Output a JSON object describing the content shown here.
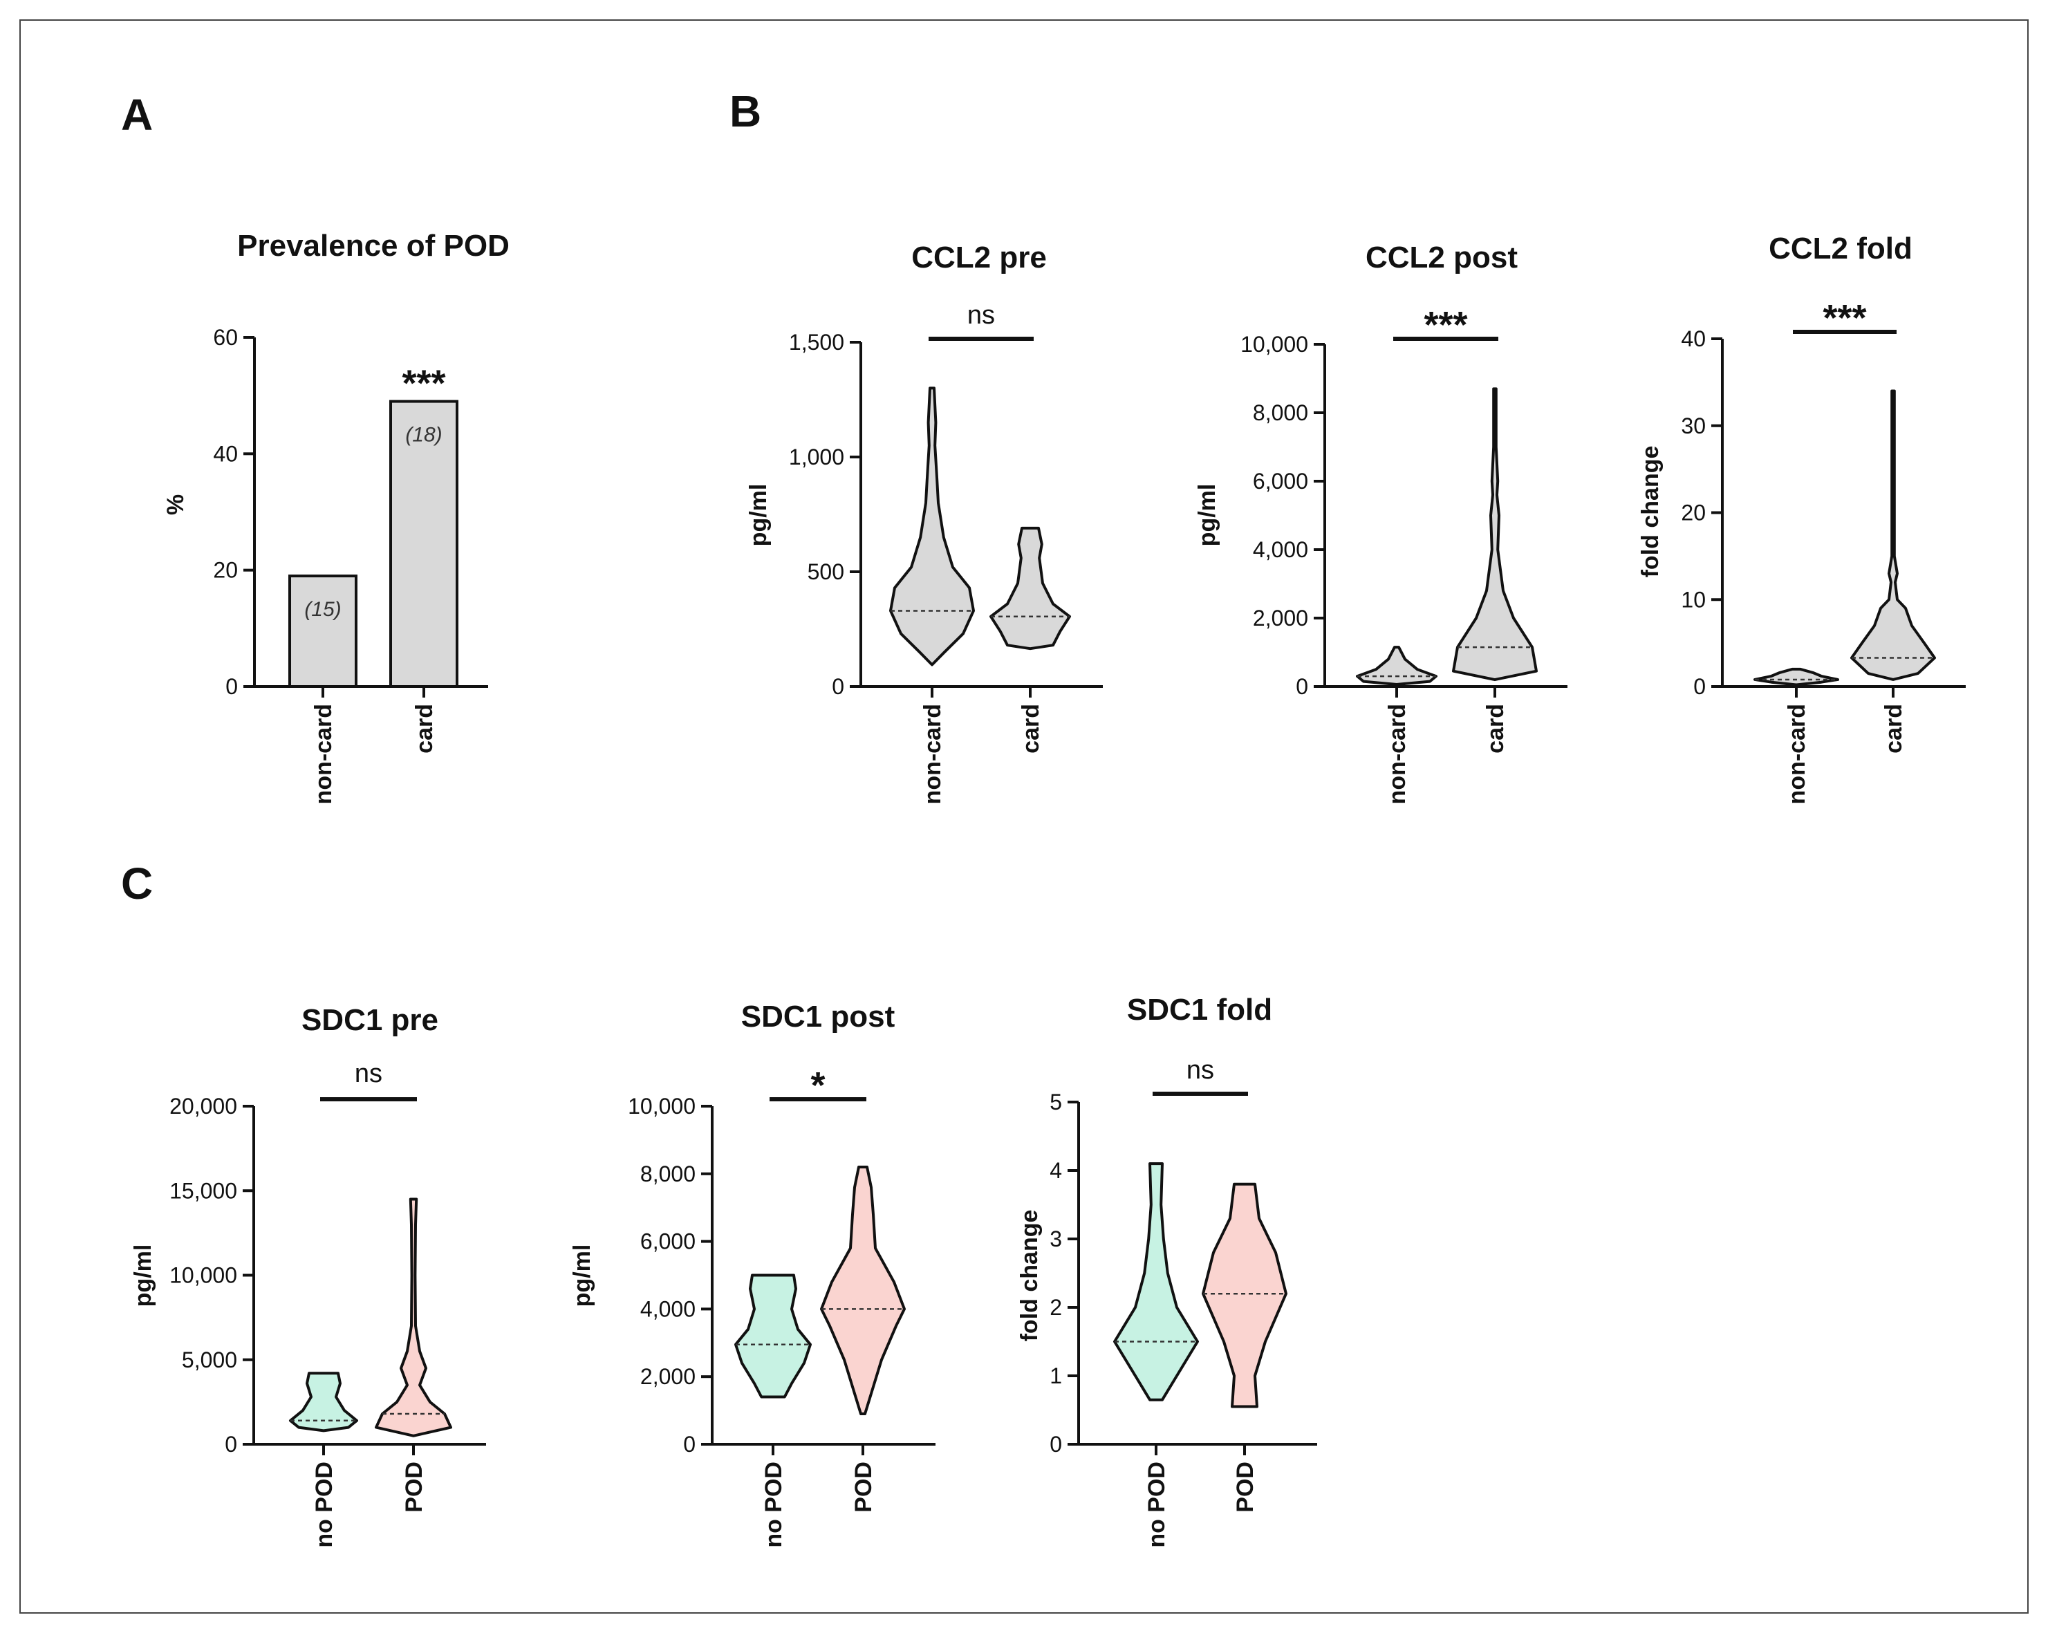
{
  "panels": {
    "a": "A",
    "b": "B",
    "c": "C"
  },
  "colors": {
    "gray": "#d9d9d9",
    "teal": "#c7f2e3",
    "pink": "#fad4d0",
    "stroke": "#111111"
  },
  "chart_data": [
    {
      "id": "pod_prevalence",
      "type": "bar",
      "title": "Prevalence of POD",
      "categories": [
        "non-card",
        "card"
      ],
      "values": [
        19,
        49
      ],
      "n_labels": [
        "(15)",
        "(18)"
      ],
      "ylabel": "%",
      "ylim": [
        0,
        60
      ],
      "yticks": [
        0,
        20,
        40,
        60
      ],
      "ytick_labels": [
        "0",
        "20",
        "40",
        "60"
      ],
      "annotation": "***"
    },
    {
      "id": "ccl2_pre",
      "type": "violin",
      "title": "CCL2 pre",
      "categories": [
        "non-card",
        "card"
      ],
      "ylabel": "pg/ml",
      "ylim": [
        0,
        1500
      ],
      "yticks": [
        0,
        500,
        1000,
        1500
      ],
      "ytick_labels": [
        "0",
        "500",
        "1,000",
        "1,500"
      ],
      "significance": "ns",
      "series": [
        {
          "name": "non-card",
          "min": 95,
          "max": 1300,
          "median": 330,
          "profile": [
            [
              95,
              0.0
            ],
            [
              150,
              0.3
            ],
            [
              230,
              0.75
            ],
            [
              330,
              1.0
            ],
            [
              430,
              0.9
            ],
            [
              520,
              0.5
            ],
            [
              650,
              0.28
            ],
            [
              800,
              0.15
            ],
            [
              900,
              0.12
            ],
            [
              1050,
              0.07
            ],
            [
              1150,
              0.09
            ],
            [
              1300,
              0.05
            ]
          ]
        },
        {
          "name": "card",
          "min": 165,
          "max": 690,
          "median": 305,
          "profile": [
            [
              165,
              0.0
            ],
            [
              180,
              0.55
            ],
            [
              240,
              0.72
            ],
            [
              305,
              0.95
            ],
            [
              360,
              0.55
            ],
            [
              450,
              0.3
            ],
            [
              560,
              0.22
            ],
            [
              620,
              0.28
            ],
            [
              690,
              0.2
            ]
          ]
        }
      ]
    },
    {
      "id": "ccl2_post",
      "type": "violin",
      "title": "CCL2 post",
      "categories": [
        "non-card",
        "card"
      ],
      "ylabel": "pg/ml",
      "ylim": [
        0,
        10000
      ],
      "yticks": [
        0,
        2000,
        4000,
        6000,
        8000,
        10000
      ],
      "ytick_labels": [
        "0",
        "2,000",
        "4,000",
        "6,000",
        "8,000",
        "10,000"
      ],
      "significance": "***",
      "series": [
        {
          "name": "non-card",
          "min": 60,
          "max": 1150,
          "median": 300,
          "profile": [
            [
              60,
              0.0
            ],
            [
              150,
              0.8
            ],
            [
              300,
              0.95
            ],
            [
              500,
              0.5
            ],
            [
              800,
              0.2
            ],
            [
              1150,
              0.05
            ]
          ]
        },
        {
          "name": "card",
          "min": 200,
          "max": 8700,
          "median": 1150,
          "profile": [
            [
              200,
              0.0
            ],
            [
              450,
              1.0
            ],
            [
              1150,
              0.9
            ],
            [
              2000,
              0.45
            ],
            [
              2800,
              0.2
            ],
            [
              4000,
              0.07
            ],
            [
              5000,
              0.1
            ],
            [
              5600,
              0.05
            ],
            [
              6000,
              0.07
            ],
            [
              7000,
              0.03
            ],
            [
              8700,
              0.03
            ]
          ]
        }
      ]
    },
    {
      "id": "ccl2_fold",
      "type": "violin",
      "title": "CCL2 fold",
      "categories": [
        "non-card",
        "card"
      ],
      "ylabel": "fold change",
      "ylim": [
        0,
        40
      ],
      "yticks": [
        0,
        10,
        20,
        30,
        40
      ],
      "ytick_labels": [
        "0",
        "10",
        "20",
        "30",
        "40"
      ],
      "significance": "***",
      "series": [
        {
          "name": "non-card",
          "min": 0.2,
          "max": 2.0,
          "median": 0.8,
          "profile": [
            [
              0.2,
              0.0
            ],
            [
              0.5,
              0.6
            ],
            [
              0.8,
              1.0
            ],
            [
              1.2,
              0.6
            ],
            [
              1.6,
              0.4
            ],
            [
              2.0,
              0.1
            ]
          ]
        },
        {
          "name": "card",
          "min": 0.8,
          "max": 34,
          "median": 3.3,
          "profile": [
            [
              0.8,
              0.0
            ],
            [
              1.5,
              0.6
            ],
            [
              3.3,
              1.0
            ],
            [
              5,
              0.75
            ],
            [
              7,
              0.45
            ],
            [
              9,
              0.3
            ],
            [
              10,
              0.1
            ],
            [
              12,
              0.05
            ],
            [
              13,
              0.1
            ],
            [
              15,
              0.03
            ],
            [
              34,
              0.03
            ]
          ]
        }
      ]
    },
    {
      "id": "sdc1_pre",
      "type": "violin",
      "title": "SDC1 pre",
      "categories": [
        "no POD",
        "POD"
      ],
      "ylabel": "pg/ml",
      "ylim": [
        0,
        20000
      ],
      "yticks": [
        0,
        5000,
        10000,
        15000,
        20000
      ],
      "ytick_labels": [
        "0",
        "5,000",
        "10,000",
        "15,000",
        "20,000"
      ],
      "significance": "ns",
      "series": [
        {
          "name": "no POD",
          "min": 800,
          "max": 4200,
          "median": 1400,
          "profile": [
            [
              800,
              0.0
            ],
            [
              1000,
              0.6
            ],
            [
              1400,
              0.8
            ],
            [
              2000,
              0.5
            ],
            [
              2800,
              0.3
            ],
            [
              3600,
              0.4
            ],
            [
              4200,
              0.35
            ]
          ]
        },
        {
          "name": "POD",
          "min": 500,
          "max": 14500,
          "median": 1800,
          "profile": [
            [
              500,
              0.0
            ],
            [
              1000,
              0.9
            ],
            [
              1800,
              0.75
            ],
            [
              2500,
              0.4
            ],
            [
              3500,
              0.15
            ],
            [
              4500,
              0.3
            ],
            [
              5500,
              0.15
            ],
            [
              7000,
              0.05
            ],
            [
              10000,
              0.04
            ],
            [
              13000,
              0.05
            ],
            [
              14500,
              0.07
            ]
          ]
        }
      ]
    },
    {
      "id": "sdc1_post",
      "type": "violin",
      "title": "SDC1 post",
      "categories": [
        "no POD",
        "POD"
      ],
      "ylabel": "pg/ml",
      "ylim": [
        0,
        10000
      ],
      "yticks": [
        0,
        2000,
        4000,
        6000,
        8000,
        10000
      ],
      "ytick_labels": [
        "0",
        "2,000",
        "4,000",
        "6,000",
        "8,000",
        "10,000"
      ],
      "significance": "*",
      "series": [
        {
          "name": "no POD",
          "min": 1400,
          "max": 5000,
          "median": 2950,
          "profile": [
            [
              1400,
              0.28
            ],
            [
              1800,
              0.45
            ],
            [
              2400,
              0.75
            ],
            [
              2950,
              0.9
            ],
            [
              3400,
              0.6
            ],
            [
              4000,
              0.45
            ],
            [
              4600,
              0.55
            ],
            [
              5000,
              0.5
            ]
          ]
        },
        {
          "name": "POD",
          "min": 900,
          "max": 8200,
          "median": 4000,
          "profile": [
            [
              900,
              0.05
            ],
            [
              1500,
              0.2
            ],
            [
              2500,
              0.45
            ],
            [
              3500,
              0.8
            ],
            [
              4000,
              1.0
            ],
            [
              4800,
              0.75
            ],
            [
              5800,
              0.3
            ],
            [
              6800,
              0.25
            ],
            [
              7600,
              0.2
            ],
            [
              8200,
              0.1
            ]
          ]
        }
      ]
    },
    {
      "id": "sdc1_fold",
      "type": "violin",
      "title": "SDC1 fold",
      "categories": [
        "no POD",
        "POD"
      ],
      "ylabel": "fold change",
      "ylim": [
        0,
        5
      ],
      "yticks": [
        0,
        1,
        2,
        3,
        4,
        5
      ],
      "ytick_labels": [
        "0",
        "1",
        "2",
        "3",
        "4",
        "5"
      ],
      "significance": "ns",
      "series": [
        {
          "name": "no POD",
          "min": 0.65,
          "max": 4.1,
          "median": 1.5,
          "profile": [
            [
              0.65,
              0.15
            ],
            [
              1.0,
              0.5
            ],
            [
              1.5,
              1.0
            ],
            [
              2.0,
              0.5
            ],
            [
              2.5,
              0.28
            ],
            [
              3.0,
              0.18
            ],
            [
              3.5,
              0.12
            ],
            [
              4.1,
              0.15
            ]
          ]
        },
        {
          "name": "POD",
          "min": 0.55,
          "max": 3.8,
          "median": 2.2,
          "profile": [
            [
              0.55,
              0.3
            ],
            [
              1.0,
              0.25
            ],
            [
              1.5,
              0.5
            ],
            [
              2.2,
              1.0
            ],
            [
              2.8,
              0.75
            ],
            [
              3.3,
              0.35
            ],
            [
              3.8,
              0.25
            ]
          ]
        }
      ]
    }
  ]
}
